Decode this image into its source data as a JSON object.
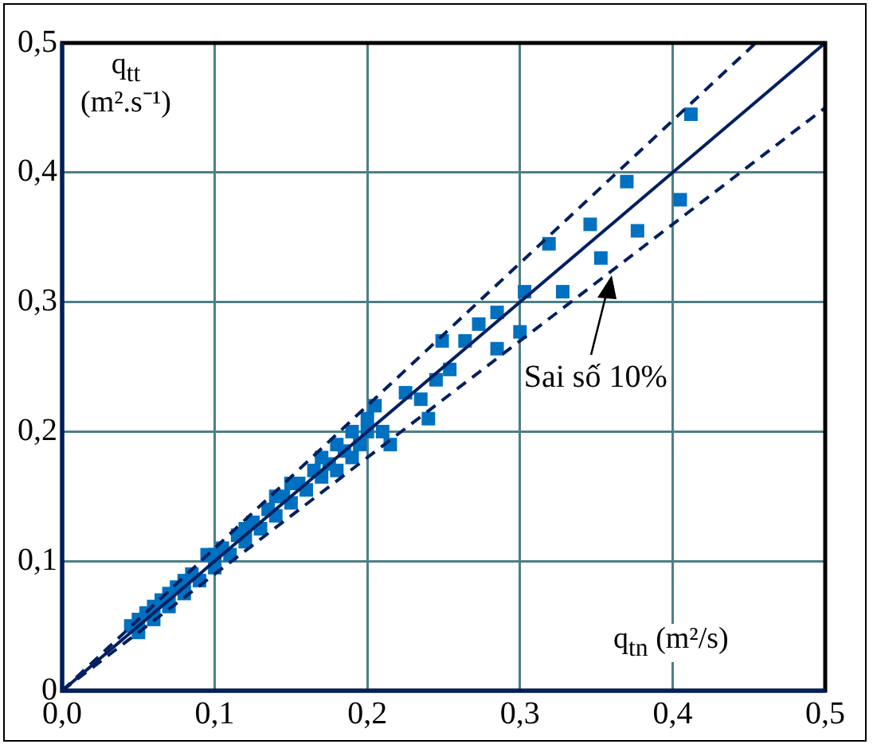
{
  "chart_data": {
    "type": "scatter",
    "xlabel": "q$_{tn}$ (m²/s)",
    "ylabel": "q$_{tt}$ (m².s⁻¹)",
    "xlim": [
      0,
      0.5
    ],
    "ylim": [
      0,
      0.5
    ],
    "xticks": [
      {
        "value": 0,
        "label": "0,0"
      },
      {
        "value": 0.1,
        "label": "0,1"
      },
      {
        "value": 0.2,
        "label": "0,2"
      },
      {
        "value": 0.3,
        "label": "0,3"
      },
      {
        "value": 0.4,
        "label": "0,4"
      },
      {
        "value": 0.5,
        "label": "0,5"
      }
    ],
    "yticks": [
      0,
      {
        "value": 0.1,
        "label": "0,1"
      },
      {
        "value": 0.2,
        "label": "0,2"
      },
      {
        "value": 0.3,
        "label": "0,3"
      },
      {
        "value": 0.4,
        "label": "0,4"
      },
      {
        "value": 0.5,
        "label": "0,5"
      }
    ],
    "grid": true,
    "legend": false,
    "annotations": [
      {
        "text": "Sai số 10%",
        "x": 0.36,
        "y": 0.325
      }
    ],
    "series": [
      {
        "color": "#0070c0",
        "marker": "square",
        "x": [
          0.045,
          0.05,
          0.05,
          0.055,
          0.06,
          0.06,
          0.065,
          0.07,
          0.07,
          0.075,
          0.08,
          0.08,
          0.085,
          0.09,
          0.095,
          0.1,
          0.1,
          0.105,
          0.11,
          0.115,
          0.12,
          0.12,
          0.125,
          0.13,
          0.135,
          0.14,
          0.14,
          0.145,
          0.15,
          0.15,
          0.155,
          0.16,
          0.165,
          0.17,
          0.17,
          0.175,
          0.18,
          0.18,
          0.185,
          0.19,
          0.19,
          0.195,
          0.2,
          0.2,
          0.205,
          0.21,
          0.215,
          0.225,
          0.235,
          0.24,
          0.245,
          0.249,
          0.254,
          0.264,
          0.273,
          0.285,
          0.285,
          0.3,
          0.303,
          0.319,
          0.328,
          0.346,
          0.353,
          0.37,
          0.377,
          0.405,
          0.412
        ],
        "values": [
          0.05,
          0.045,
          0.055,
          0.06,
          0.055,
          0.065,
          0.07,
          0.065,
          0.075,
          0.08,
          0.075,
          0.085,
          0.09,
          0.085,
          0.105,
          0.095,
          0.105,
          0.11,
          0.105,
          0.12,
          0.115,
          0.125,
          0.13,
          0.125,
          0.14,
          0.135,
          0.15,
          0.15,
          0.145,
          0.16,
          0.16,
          0.155,
          0.17,
          0.165,
          0.18,
          0.175,
          0.17,
          0.19,
          0.185,
          0.18,
          0.2,
          0.19,
          0.2,
          0.21,
          0.22,
          0.2,
          0.19,
          0.23,
          0.225,
          0.21,
          0.24,
          0.27,
          0.248,
          0.27,
          0.283,
          0.292,
          0.264,
          0.277,
          0.308,
          0.345,
          0.308,
          0.36,
          0.334,
          0.393,
          0.355,
          0.379,
          0.445
        ]
      },
      {
        "type": "line",
        "color": "#002060",
        "line_style": "solid",
        "marker": "none",
        "x": [
          0,
          0.5
        ],
        "values": [
          0,
          0.5
        ]
      },
      {
        "type": "line",
        "color": "#002060",
        "line_style": "dashed",
        "marker": "none",
        "x": [
          0,
          0.4545
        ],
        "values": [
          0,
          0.5
        ]
      },
      {
        "type": "line",
        "color": "#002060",
        "line_style": "dashed",
        "marker": "none",
        "x": [
          0,
          0.5
        ],
        "values": [
          0,
          0.45
        ]
      }
    ]
  }
}
